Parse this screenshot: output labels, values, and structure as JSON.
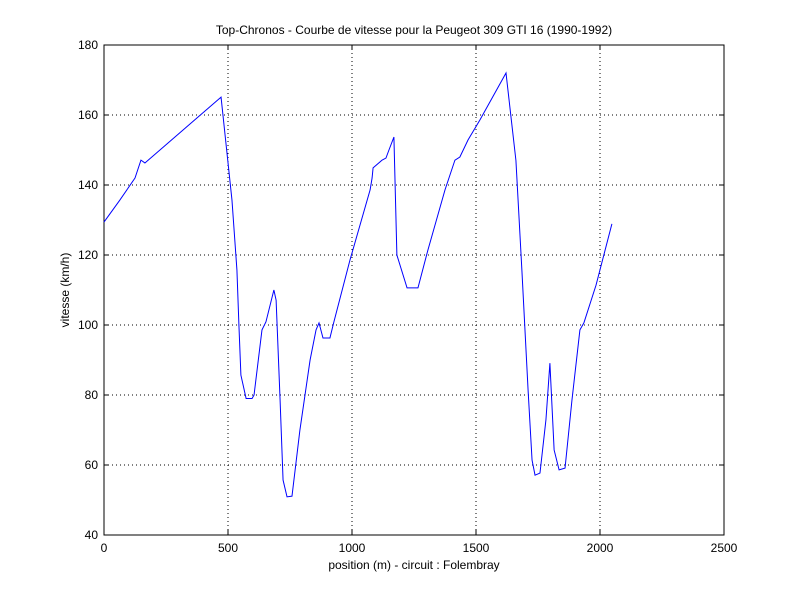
{
  "chart_data": {
    "type": "line",
    "title": "Top-Chronos - Courbe de vitesse pour la Peugeot 309 GTI 16 (1990-1992)",
    "x_label": "position (m) - circuit : Folembray",
    "y_label": "vitesse (km/h)",
    "xlim": [
      0,
      2500
    ],
    "xticks": [
      0,
      500,
      1000,
      1500,
      2000,
      2500
    ],
    "ylim": [
      40,
      180
    ],
    "yticks": [
      40,
      60,
      80,
      100,
      120,
      140,
      160,
      180
    ],
    "grid": true,
    "series": [
      {
        "color": "#0000ff",
        "x": [
          0,
          64,
          125,
          149,
          165,
          472,
          516,
          536,
          544,
          552,
          573,
          597,
          605,
          637,
          653,
          685,
          694,
          710,
          722,
          738,
          758,
          790,
          831,
          855,
          867,
          883,
          911,
          927,
          992,
          1073,
          1081,
          1085,
          1121,
          1137,
          1149,
          1169,
          1181,
          1222,
          1266,
          1306,
          1375,
          1415,
          1435,
          1468,
          1516,
          1621,
          1661,
          1685,
          1710,
          1726,
          1738,
          1758,
          1782,
          1798,
          1815,
          1835,
          1859,
          1887,
          1919,
          1935,
          1984,
          2048
        ],
        "values": [
          129.4,
          135.7,
          142,
          147.1,
          146.3,
          165.1,
          135.7,
          115.7,
          100,
          85.7,
          79,
          79,
          80,
          98.6,
          100.9,
          110,
          107.1,
          78.6,
          55.7,
          50.9,
          51.1,
          70,
          90,
          98.6,
          100.6,
          96.3,
          96.3,
          100.9,
          118.6,
          138.6,
          142,
          144.9,
          147.1,
          147.7,
          150,
          153.7,
          120,
          110.6,
          110.6,
          121.4,
          138.6,
          147.1,
          148,
          152.9,
          158.6,
          172,
          147,
          115.7,
          81.4,
          61.4,
          57.1,
          57.7,
          72.9,
          89.1,
          64.3,
          58.6,
          59.1,
          78.6,
          98.6,
          100.6,
          111.4,
          128.9
        ]
      }
    ]
  }
}
